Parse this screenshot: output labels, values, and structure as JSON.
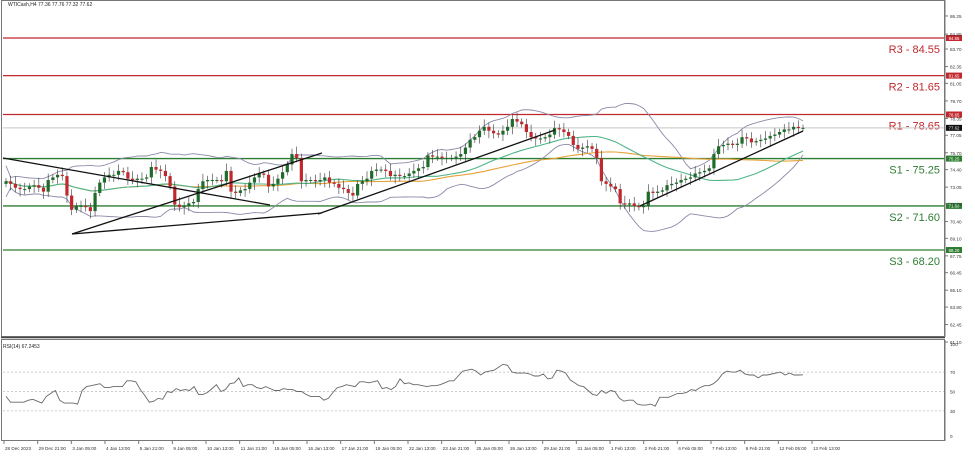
{
  "header": {
    "symbol_line": "WTICash,H4  77.36 77.76 77.32 77.62"
  },
  "rsi_panel": {
    "label": "RSI(14) 67.2453"
  },
  "levels": [
    {
      "name": "R3",
      "label": "R3 - 84.55",
      "value": 84.55,
      "tag": "84.55",
      "color": "#c0282d"
    },
    {
      "name": "R2",
      "label": "R2 - 81.65",
      "value": 81.65,
      "tag": "81.65",
      "color": "#c0282d"
    },
    {
      "name": "R1",
      "label": "R1 - 78.65",
      "value": 78.65,
      "tag": "78.65",
      "color": "#c0282d"
    },
    {
      "name": "S1",
      "label": "S1 - 75.25",
      "value": 75.25,
      "tag": "75.25",
      "color": "#2e7d32"
    },
    {
      "name": "S2",
      "label": "S2 - 71.60",
      "value": 71.6,
      "tag": "71.60",
      "color": "#2e7d32"
    },
    {
      "name": "S3",
      "label": "S3 - 68.20",
      "value": 68.2,
      "tag": "68.20",
      "color": "#2e7d32"
    }
  ],
  "current_price_tag": "77.62",
  "colors": {
    "bull": "#1e6b2a",
    "bear": "#c0282d",
    "bollinger": "#8a8aa8",
    "ma_fast": "#4fb58a",
    "ma_slow": "#e8a23a",
    "trendline": "#111111",
    "rsi_line": "#666666",
    "current_line": "#c8c8c8"
  },
  "chart_data": [
    {
      "type": "candlestick",
      "title": "WTICash,H4",
      "ohlc_last": {
        "open": 77.36,
        "high": 77.76,
        "low": 77.32,
        "close": 77.62
      },
      "ylim": [
        61.1,
        87.65
      ],
      "y_ticks": [
        "87.65",
        "86.25",
        "84.85",
        "83.70",
        "82.35",
        "81.05",
        "79.70",
        "78.35",
        "77.05",
        "75.70",
        "74.40",
        "73.05",
        "71.75",
        "70.40",
        "69.10",
        "67.75",
        "66.45",
        "65.10",
        "63.80",
        "62.45",
        "61.10"
      ],
      "x_ticks": [
        "28 Dec 2023",
        "29 Dec 21:00",
        "3 Jan 05:00",
        "4 Jan 13:00",
        "5 Jan 21:00",
        "9 Jan 05:00",
        "10 Jan 13:00",
        "11 Jan 21:00",
        "15 Jan 05:00",
        "16 Jan 13:00",
        "17 Jan 21:00",
        "19 Jan 05:00",
        "22 Jan 13:00",
        "23 Jan 21:00",
        "25 Jan 05:00",
        "26 Jan 13:00",
        "29 Jan 21:00",
        "31 Jan 05:00",
        "1 Feb 13:00",
        "2 Feb 21:00",
        "6 Feb 05:00",
        "7 Feb 13:00",
        "8 Feb 21:00",
        "12 Feb 05:00",
        "13 Feb 13:00"
      ],
      "horizontal_levels": [
        {
          "label": "R3 - 84.55",
          "value": 84.55
        },
        {
          "label": "R2 - 81.65",
          "value": 81.65
        },
        {
          "label": "R1 - 78.65",
          "value": 78.65
        },
        {
          "label": "S1 - 75.25",
          "value": 75.25
        },
        {
          "label": "S2 - 71.60",
          "value": 71.6
        },
        {
          "label": "S3 - 68.20",
          "value": 68.2
        }
      ],
      "indicators": [
        "Bollinger Bands",
        "Moving Average (fast, green)",
        "Moving Average (slow, orange)",
        "Trendlines"
      ],
      "close_series_approx": [
        73.5,
        73.3,
        73.0,
        72.9,
        72.9,
        73.1,
        73.2,
        73.0,
        72.7,
        73.6,
        73.8,
        74.0,
        73.9,
        72.4,
        71.3,
        71.6,
        71.6,
        71.5,
        71.2,
        72.6,
        73.4,
        73.8,
        74.0,
        74.0,
        74.3,
        74.2,
        73.7,
        73.6,
        73.7,
        73.7,
        73.8,
        74.6,
        74.4,
        74.3,
        73.9,
        73.1,
        71.7,
        71.5,
        71.6,
        71.8,
        71.9,
        72.9,
        73.5,
        73.6,
        73.6,
        73.6,
        73.5,
        74.3,
        72.7,
        72.6,
        72.8,
        72.9,
        73.4,
        73.8,
        74.1,
        74.0,
        73.1,
        73.3,
        73.7,
        74.2,
        74.8,
        75.6,
        75.3,
        73.5,
        73.6,
        73.6,
        73.5,
        73.6,
        73.8,
        73.4,
        73.3,
        73.0,
        72.9,
        72.6,
        72.4,
        73.3,
        73.5,
        73.7,
        74.3,
        74.4,
        74.4,
        74.3,
        73.9,
        74.0,
        73.9,
        73.9,
        74.1,
        74.3,
        74.5,
        74.6,
        75.5,
        75.4,
        75.4,
        75.3,
        75.3,
        75.3,
        75.4,
        75.6,
        76.1,
        76.7,
        76.9,
        77.4,
        77.7,
        77.4,
        77.2,
        77.1,
        77.4,
        77.7,
        78.3,
        78.1,
        77.9,
        77.3,
        76.9,
        76.8,
        76.8,
        76.9,
        77.1,
        77.6,
        77.5,
        77.3,
        77.0,
        76.3,
        76.0,
        76.1,
        76.2,
        76.0,
        75.3,
        73.5,
        73.3,
        73.1,
        72.9,
        71.8,
        71.7,
        71.8,
        71.6,
        71.5,
        71.6,
        72.7,
        72.6,
        72.7,
        72.8,
        73.2,
        73.3,
        73.4,
        73.6,
        73.7,
        73.8,
        74.1,
        74.2,
        74.3,
        74.5,
        75.6,
        76.2,
        76.3,
        76.4,
        76.3,
        76.4,
        76.9,
        76.8,
        76.5,
        76.6,
        76.7,
        76.8,
        77.0,
        77.1,
        77.3,
        77.5,
        77.5,
        77.7,
        77.6,
        77.62
      ]
    },
    {
      "type": "line",
      "title": "RSI(14) 67.2453",
      "ylim": [
        0,
        100
      ],
      "y_ticks": [
        "100",
        "70",
        "50",
        "30",
        "0"
      ],
      "reference_levels": [
        70,
        50,
        30
      ],
      "last_value": 67.2453,
      "values_approx": [
        45,
        39,
        39,
        39,
        39,
        41,
        42,
        40,
        38,
        45,
        48,
        51,
        41,
        38,
        38,
        38,
        37,
        51,
        55,
        56,
        57,
        58,
        54,
        54,
        55,
        55,
        55,
        61,
        61,
        60,
        52,
        46,
        39,
        40,
        43,
        42,
        50,
        49,
        53,
        51,
        52,
        51,
        55,
        47,
        47,
        49,
        53,
        57,
        50,
        52,
        58,
        59,
        64,
        55,
        57,
        57,
        54,
        53,
        55,
        53,
        51,
        51,
        53,
        52,
        52,
        50,
        50,
        47,
        45,
        45,
        45,
        41,
        43,
        49,
        54,
        55,
        57,
        56,
        55,
        60,
        60,
        59,
        60,
        61,
        53,
        54,
        52,
        55,
        63,
        58,
        59,
        57,
        57,
        56,
        55,
        56,
        56,
        57,
        59,
        61,
        61,
        66,
        71,
        72,
        73,
        71,
        67,
        70,
        71,
        72,
        75,
        78,
        77,
        70,
        69,
        69,
        69,
        68,
        66,
        66,
        68,
        63,
        64,
        72,
        71,
        69,
        62,
        59,
        56,
        55,
        51,
        47,
        46,
        51,
        48,
        51,
        50,
        43,
        40,
        41,
        41,
        37,
        36,
        36,
        37,
        35,
        44,
        44,
        44,
        46,
        48,
        48,
        49,
        52,
        51,
        54,
        56,
        56,
        58,
        62,
        68,
        71,
        70,
        70,
        72,
        68,
        67,
        67,
        64,
        67,
        67,
        68,
        69,
        70,
        67,
        69,
        67,
        67,
        67.2453
      ]
    }
  ]
}
